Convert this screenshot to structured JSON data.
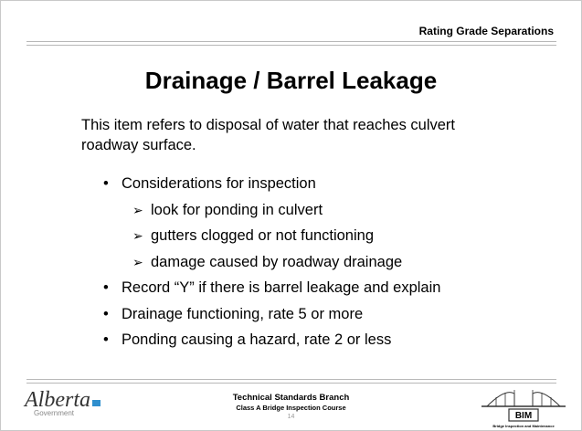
{
  "header": {
    "section": "Rating Grade Separations"
  },
  "title": "Drainage / Barrel Leakage",
  "intro": "This item refers to disposal of water that reaches culvert roadway surface.",
  "bullets": [
    {
      "text": "Considerations for inspection",
      "subitems": [
        "look for ponding in culvert",
        "gutters clogged or not functioning",
        "damage caused by roadway drainage"
      ]
    },
    {
      "text": "Record “Y” if there is barrel leakage and explain"
    },
    {
      "text": "Drainage functioning, rate 5 or more"
    },
    {
      "text": "Ponding causing a hazard, rate 2 or less"
    }
  ],
  "footer": {
    "branch": "Technical Standards Branch",
    "course": "Class A Bridge Inspection Course",
    "page": "14",
    "logo_left": {
      "name": "Alberta",
      "subtitle": "Government"
    },
    "logo_right": {
      "name": "BIM",
      "subtitle": "Bridge Inspection and Maintenance"
    }
  }
}
